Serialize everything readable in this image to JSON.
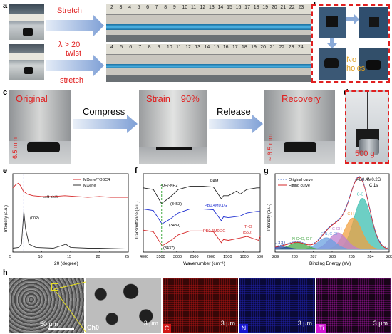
{
  "panel_labels": {
    "a": "a",
    "b": "b",
    "c": "c",
    "d": "d",
    "e": "e",
    "f": "f",
    "g": "g",
    "h": "h"
  },
  "panel_a": {
    "stretch_label": "Stretch",
    "lambda_label": "λ > 20",
    "twist_label": "twist",
    "twist_stretch_label": "stretch",
    "ruler_numbers_top": [
      "2",
      "3",
      "4",
      "5",
      "6",
      "7",
      "8",
      "9",
      "10",
      "11",
      "12",
      "13",
      "14",
      "15",
      "16",
      "17",
      "18",
      "19",
      "20",
      "21",
      "22",
      "23"
    ],
    "ruler_numbers_bottom": [
      "4",
      "5",
      "6",
      "7",
      "8",
      "9",
      "10",
      "11",
      "12",
      "13",
      "14",
      "15",
      "16",
      "17",
      "18",
      "19",
      "20",
      "21",
      "22",
      "23",
      "24"
    ]
  },
  "panel_b": {
    "no_holes_1": "No",
    "no_holes_2": "holes"
  },
  "panel_c": {
    "original": "Original",
    "compress": "Compress",
    "strain": "Strain = 90%",
    "release": "Release",
    "recovery": "Recovery",
    "height_original": "6.5 mm",
    "height_recovery": "~ 6.5 mm"
  },
  "panel_d": {
    "weight": "500 g"
  },
  "chart_data": [
    {
      "panel": "e",
      "type": "line",
      "xlabel": "2θ (degree)",
      "ylabel": "Intensity (a.u.)",
      "xlim": [
        5,
        25
      ],
      "xticks": [
        "5",
        "10",
        "15",
        "20",
        "25"
      ],
      "series": [
        {
          "name": "MXene/TOBC4",
          "color": "#d62728",
          "points": [
            [
              5,
              0.82
            ],
            [
              5.5,
              0.86
            ],
            [
              6,
              0.88
            ],
            [
              6.4,
              0.84
            ],
            [
              6.8,
              0.78
            ],
            [
              7.5,
              0.74
            ],
            [
              8.5,
              0.72
            ],
            [
              10,
              0.71
            ],
            [
              12,
              0.71
            ],
            [
              14,
              0.72
            ],
            [
              16,
              0.71
            ],
            [
              18,
              0.7
            ],
            [
              20,
              0.71
            ],
            [
              22,
              0.7
            ],
            [
              25,
              0.7
            ]
          ]
        },
        {
          "name": "MXene",
          "color": "#333333",
          "points": [
            [
              5,
              0.05
            ],
            [
              6,
              0.06
            ],
            [
              6.5,
              0.1
            ],
            [
              6.9,
              0.52
            ],
            [
              7.2,
              0.3
            ],
            [
              7.8,
              0.1
            ],
            [
              9,
              0.06
            ],
            [
              12,
              0.05
            ],
            [
              14.2,
              0.1
            ],
            [
              15,
              0.06
            ],
            [
              18,
              0.05
            ],
            [
              20,
              0.05
            ],
            [
              25,
              0.04
            ]
          ]
        }
      ],
      "annotations": [
        "Left shift",
        "(002)"
      ],
      "dashed_x": 6.9
    },
    {
      "panel": "f",
      "type": "line",
      "xlabel": "Wavenumber (cm⁻¹)",
      "ylabel": "Transmittance (a.u.)",
      "xlim": [
        4000,
        500
      ],
      "xticks": [
        "4000",
        "3500",
        "3000",
        "2500",
        "2000",
        "1500",
        "1000",
        "500"
      ],
      "series": [
        {
          "name": "PAM",
          "color": "#222222",
          "points": [
            [
              4000,
              0.82
            ],
            [
              3700,
              0.8
            ],
            [
              3453,
              0.62
            ],
            [
              3200,
              0.7
            ],
            [
              2950,
              0.8
            ],
            [
              2600,
              0.84
            ],
            [
              2200,
              0.84
            ],
            [
              1900,
              0.83
            ],
            [
              1660,
              0.68
            ],
            [
              1600,
              0.72
            ],
            [
              1450,
              0.72
            ],
            [
              1200,
              0.78
            ],
            [
              1100,
              0.74
            ],
            [
              900,
              0.8
            ],
            [
              600,
              0.82
            ],
            [
              500,
              0.82
            ]
          ]
        },
        {
          "name": "PB0.4M0.1G",
          "color": "#1f2fd1",
          "points": [
            [
              4000,
              0.55
            ],
            [
              3700,
              0.53
            ],
            [
              3439,
              0.36
            ],
            [
              3200,
              0.42
            ],
            [
              2950,
              0.5
            ],
            [
              2600,
              0.55
            ],
            [
              2200,
              0.55
            ],
            [
              1900,
              0.54
            ],
            [
              1660,
              0.4
            ],
            [
              1600,
              0.45
            ],
            [
              1450,
              0.44
            ],
            [
              1100,
              0.46
            ],
            [
              900,
              0.5
            ],
            [
              600,
              0.52
            ],
            [
              500,
              0.52
            ]
          ]
        },
        {
          "name": "PB0.4M0.2G",
          "color": "#d62728",
          "points": [
            [
              4000,
              0.28
            ],
            [
              3700,
              0.26
            ],
            [
              3437,
              0.08
            ],
            [
              3200,
              0.14
            ],
            [
              2950,
              0.22
            ],
            [
              2600,
              0.27
            ],
            [
              2200,
              0.27
            ],
            [
              1900,
              0.26
            ],
            [
              1660,
              0.12
            ],
            [
              1600,
              0.16
            ],
            [
              1450,
              0.15
            ],
            [
              1100,
              0.18
            ],
            [
              900,
              0.2
            ],
            [
              550,
              0.15
            ],
            [
              500,
              0.2
            ]
          ]
        }
      ],
      "annotations": [
        "-OH/-NH2",
        "(3453)",
        "(3439)",
        "(3437)",
        "Ti-O",
        "(550)"
      ]
    },
    {
      "panel": "g",
      "type": "line",
      "title": "PB0.4M0.2G",
      "subtitle": "C 1s",
      "xlabel": "Binding Energy (eV)",
      "ylabel": "Intensity (a.u.)",
      "xlim": [
        289,
        283
      ],
      "xticks": [
        "289",
        "288",
        "287",
        "286",
        "285",
        "284",
        "283"
      ],
      "legend": [
        "Original curve",
        "Fitting curve"
      ],
      "peaks": [
        {
          "name": "C-C",
          "center": 284.4,
          "height": 0.62,
          "color": "#3cbfb0"
        },
        {
          "name": "C-H",
          "center": 284.9,
          "height": 0.38,
          "color": "#f0a040"
        },
        {
          "name": "C-OH",
          "center": 285.7,
          "height": 0.2,
          "color": "#c080d0"
        },
        {
          "name": "C-N, C-OH",
          "center": 286.3,
          "height": 0.14,
          "color": "#6aa0e0"
        },
        {
          "name": "N-C=O, C-F",
          "center": 287.8,
          "height": 0.08,
          "color": "#48a848"
        },
        {
          "name": "-COO",
          "center": 288.7,
          "height": 0.03,
          "color": "#2040a0"
        }
      ]
    }
  ],
  "panel_h": {
    "scale_50": "50 μm",
    "scale_3a": "3 μm",
    "scale_3b": "3 μm",
    "scale_3c": "3 μm",
    "scale_3d": "3 μm",
    "ch0": "Ch0",
    "c": "C",
    "n": "N",
    "ti": "Ti",
    "colors": {
      "c": "#d01818",
      "n": "#1818d0",
      "ti": "#d018d0"
    }
  }
}
